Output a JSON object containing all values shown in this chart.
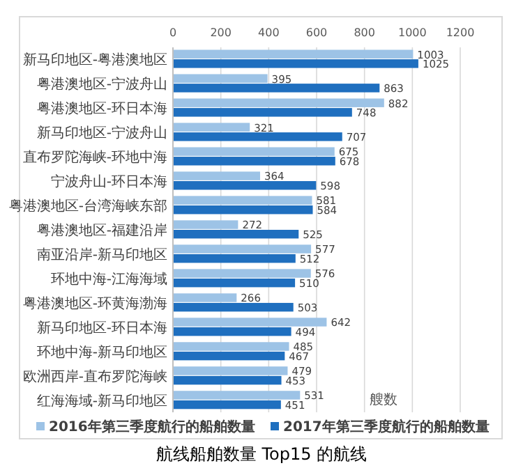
{
  "chart_data": {
    "type": "bar",
    "orientation": "horizontal",
    "title": "航线船舶数量 Top15 的航线",
    "xlabel": "艘数",
    "categories": [
      "新马印地区-粤港澳地区",
      "粤港澳地区-宁波舟山",
      "粤港澳地区-环日本海",
      "新马印地区-宁波舟山",
      "直布罗陀海峡-环地中海",
      "宁波舟山-环日本海",
      "粤港澳地区-台湾海峡东部",
      "粤港澳地区-福建沿岸",
      "南亚沿岸-新马印地区",
      "环地中海-江海海域",
      "粤港澳地区-环黄海渤海",
      "新马印地区-环日本海",
      "环地中海-新马印地区",
      "欧洲西岸-直布罗陀海峡",
      "红海海域-新马印地区"
    ],
    "series": [
      {
        "name": "2016年第三季度航行的船舶数量",
        "color": "#9dc3e6",
        "values": [
          1003,
          395,
          882,
          321,
          675,
          364,
          581,
          272,
          577,
          576,
          266,
          642,
          485,
          479,
          531
        ]
      },
      {
        "name": "2017年第三季度航行的船舶数量",
        "color": "#1f6fbf",
        "values": [
          1025,
          863,
          748,
          707,
          678,
          598,
          584,
          525,
          512,
          510,
          503,
          494,
          467,
          453,
          451
        ]
      }
    ],
    "xlim": [
      0,
      1200
    ],
    "xticks": [
      0,
      200,
      400,
      600,
      800,
      1000,
      1200
    ],
    "grid": "x",
    "legend": "bottom",
    "data_labels": true
  }
}
